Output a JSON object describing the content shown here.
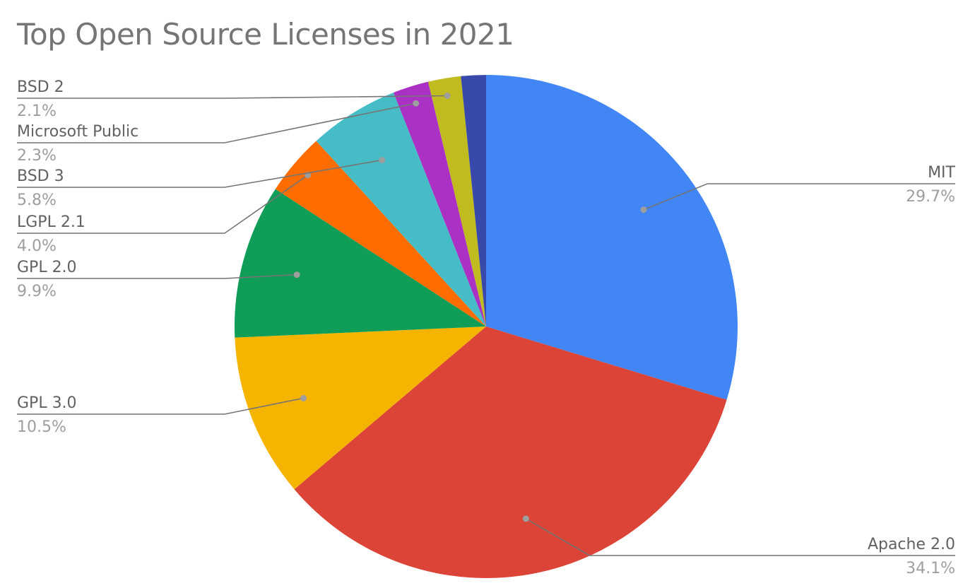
{
  "chart_data": {
    "type": "pie",
    "title": "Top Open Source Licenses in 2021",
    "slices": [
      {
        "name": "MIT",
        "value": 29.7,
        "label": "29.7%",
        "color": "#4285f4"
      },
      {
        "name": "Apache 2.0",
        "value": 34.1,
        "label": "34.1%",
        "color": "#db4437"
      },
      {
        "name": "GPL 3.0",
        "value": 10.5,
        "label": "10.5%",
        "color": "#f4b400"
      },
      {
        "name": "GPL 2.0",
        "value": 9.9,
        "label": "9.9%",
        "color": "#0f9d58"
      },
      {
        "name": "LGPL 2.1",
        "value": 4.0,
        "label": "4.0%",
        "color": "#ff6d00"
      },
      {
        "name": "BSD 3",
        "value": 5.8,
        "label": "5.8%",
        "color": "#46bdc6"
      },
      {
        "name": "Microsoft Public",
        "value": 2.3,
        "label": "2.3%",
        "color": "#ab30c4"
      },
      {
        "name": "BSD 2",
        "value": 2.1,
        "label": "2.1%",
        "color": "#c0bc1f"
      },
      {
        "name": "",
        "value": 1.6,
        "label": "",
        "color": "#3949ab"
      }
    ],
    "legend": "none",
    "labels": "outside with leader lines"
  }
}
